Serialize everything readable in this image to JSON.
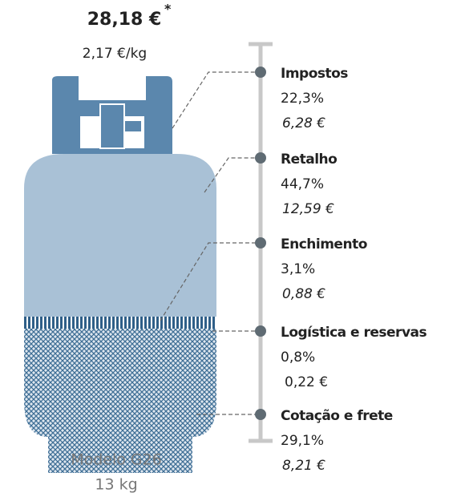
{
  "header": {
    "price": "28,18 €",
    "price_note": "*",
    "price_per_kg": "2,17 €/kg"
  },
  "items": [
    {
      "name": "Impostos",
      "percent": "22,3%",
      "amount": "6,28 €",
      "italic": true
    },
    {
      "name": "Retalho",
      "percent": "44,7%",
      "amount": "12,59 €",
      "italic": true
    },
    {
      "name": "Enchimento",
      "percent": "3,1%",
      "amount": "0,88 €",
      "italic": true
    },
    {
      "name": "Logística e reservas",
      "percent": "0,8%",
      "amount": "0,22 €",
      "italic": false
    },
    {
      "name": "Cotação e frete",
      "percent": "29,1%",
      "amount": "8,21 €",
      "italic": true
    }
  ],
  "footer": {
    "model": "Modelo G26",
    "weight": "13 kg"
  }
}
